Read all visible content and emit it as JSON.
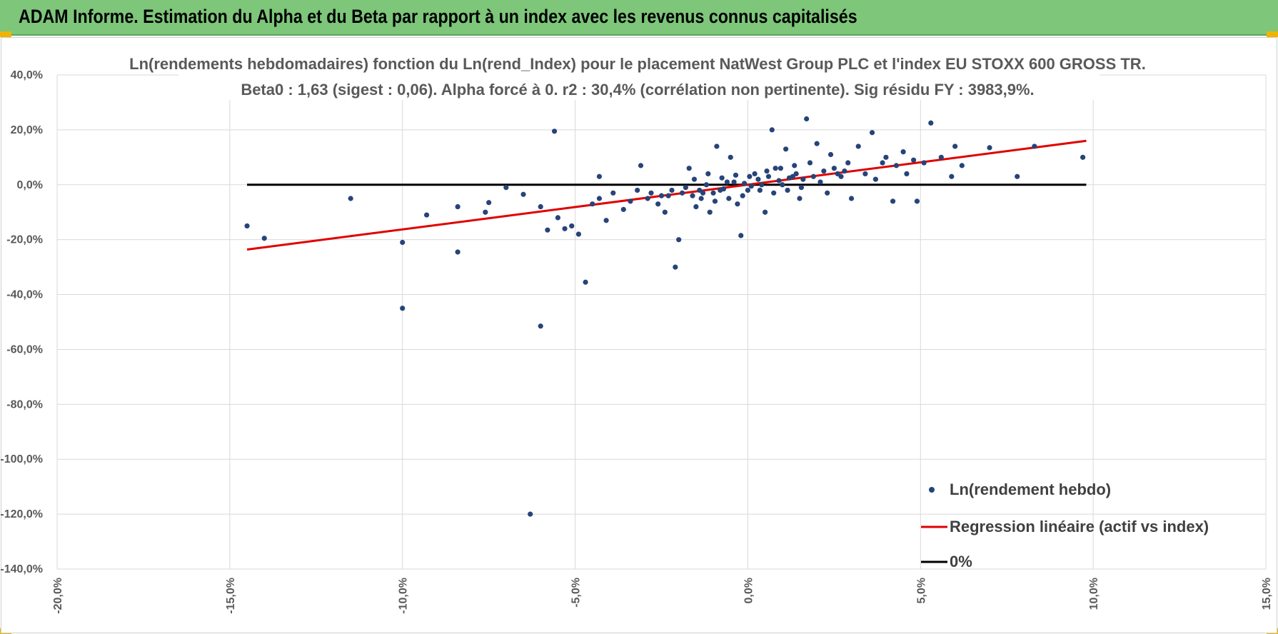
{
  "banner": {
    "title": "ADAM Informe. Estimation du Alpha et du Beta par rapport à un index avec les revenus connus capitalisés"
  },
  "colors": {
    "banner_bg": "#7dc67a",
    "points": "#264478",
    "regression": "#e00000",
    "zero_line": "#000000",
    "grid": "#d9d9d9"
  },
  "chart_data": {
    "type": "scatter",
    "title_line1": "Ln(rendements hebdomadaires) fonction du Ln(rend_Index) pour le placement NatWest Group PLC et l'index EU STOXX 600 GROSS TR.",
    "title_line2": "Beta0 : 1,63 (sigest : 0,06).  Alpha forcé à 0. r2 : 30,4% (corrélation non pertinente). Sig résidu FY : 3983,9%.",
    "xlim": [
      -20,
      15
    ],
    "ylim": [
      -140,
      40
    ],
    "x_ticks": [
      "-20,0%",
      "-15,0%",
      "-10,0%",
      "-5,0%",
      "0,0%",
      "5,0%",
      "10,0%",
      "15,0%"
    ],
    "x_tick_values": [
      -20,
      -15,
      -10,
      -5,
      0,
      5,
      10,
      15
    ],
    "y_ticks": [
      "40,0%",
      "20,0%",
      "0,0%",
      "-20,0%",
      "-40,0%",
      "-60,0%",
      "-80,0%",
      "-100,0%",
      "-120,0%",
      "-140,0%"
    ],
    "y_tick_values": [
      40,
      20,
      0,
      -20,
      -40,
      -60,
      -80,
      -100,
      -120,
      -140
    ],
    "grid": true,
    "legend_position": "bottom-right",
    "series": [
      {
        "name": "Ln(rendement hebdo)",
        "kind": "points",
        "points": [
          [
            -14.5,
            -15
          ],
          [
            -14.0,
            -19.5
          ],
          [
            -11.5,
            -5
          ],
          [
            -10.0,
            -45
          ],
          [
            -10.0,
            -21
          ],
          [
            -9.3,
            -11
          ],
          [
            -8.4,
            -24.5
          ],
          [
            -8.4,
            -8
          ],
          [
            -7.6,
            -10
          ],
          [
            -7.5,
            -6.5
          ],
          [
            -7.0,
            -1
          ],
          [
            -6.5,
            -3.5
          ],
          [
            -6.3,
            -120
          ],
          [
            -6.0,
            -51.5
          ],
          [
            -6.0,
            -8
          ],
          [
            -5.8,
            -16.5
          ],
          [
            -5.6,
            19.5
          ],
          [
            -5.5,
            -12
          ],
          [
            -5.3,
            -16
          ],
          [
            -5.1,
            -15
          ],
          [
            -4.9,
            -18
          ],
          [
            -4.7,
            -35.5
          ],
          [
            -4.5,
            -7
          ],
          [
            -4.3,
            -5
          ],
          [
            -4.1,
            -13
          ],
          [
            -4.3,
            3
          ],
          [
            -3.9,
            -3
          ],
          [
            -3.6,
            -9
          ],
          [
            -3.4,
            -6
          ],
          [
            -3.2,
            -2
          ],
          [
            -3.1,
            7
          ],
          [
            -2.9,
            -5
          ],
          [
            -2.6,
            -7
          ],
          [
            -2.4,
            -10
          ],
          [
            -2.3,
            -4
          ],
          [
            -2.0,
            -20
          ],
          [
            -2.1,
            -30
          ],
          [
            -1.8,
            -1
          ],
          [
            -1.7,
            6
          ],
          [
            -1.5,
            -8
          ],
          [
            -1.3,
            -3
          ],
          [
            -1.1,
            -10
          ],
          [
            -0.9,
            14
          ],
          [
            -0.8,
            -2
          ],
          [
            -0.6,
            1
          ],
          [
            -0.5,
            10
          ],
          [
            -0.3,
            -7
          ],
          [
            -0.2,
            -18.5
          ],
          [
            0.0,
            -2
          ],
          [
            0.2,
            4
          ],
          [
            0.4,
            0
          ],
          [
            0.5,
            -10
          ],
          [
            0.7,
            20
          ],
          [
            0.8,
            6
          ],
          [
            1.0,
            0
          ],
          [
            1.1,
            13
          ],
          [
            1.3,
            3
          ],
          [
            1.5,
            -5
          ],
          [
            1.7,
            24
          ],
          [
            1.8,
            8
          ],
          [
            2.0,
            15
          ],
          [
            2.1,
            1
          ],
          [
            2.3,
            -3
          ],
          [
            2.4,
            11
          ],
          [
            2.5,
            6
          ],
          [
            2.7,
            3
          ],
          [
            2.9,
            8
          ],
          [
            3.0,
            -5
          ],
          [
            3.2,
            14
          ],
          [
            3.4,
            4
          ],
          [
            3.6,
            19
          ],
          [
            3.7,
            2
          ],
          [
            3.9,
            8
          ],
          [
            4.0,
            10
          ],
          [
            4.2,
            -6
          ],
          [
            4.3,
            7
          ],
          [
            4.5,
            12
          ],
          [
            4.6,
            4
          ],
          [
            4.8,
            9
          ],
          [
            4.9,
            -6
          ],
          [
            5.1,
            8
          ],
          [
            5.3,
            22.5
          ],
          [
            5.6,
            10
          ],
          [
            5.9,
            3
          ],
          [
            6.0,
            14
          ],
          [
            6.2,
            7
          ],
          [
            7.0,
            13.5
          ],
          [
            7.8,
            3
          ],
          [
            8.3,
            14
          ],
          [
            9.7,
            10
          ],
          [
            -0.1,
            0.5
          ],
          [
            0.1,
            -0.5
          ],
          [
            0.3,
            2
          ],
          [
            -0.4,
            1
          ],
          [
            0.6,
            3
          ],
          [
            -0.7,
            -1.5
          ],
          [
            0.9,
            1.5
          ],
          [
            -1.0,
            -3
          ],
          [
            1.2,
            2.5
          ],
          [
            -1.2,
            0
          ],
          [
            1.4,
            4
          ],
          [
            -1.4,
            -2
          ],
          [
            1.6,
            2
          ],
          [
            -1.6,
            -4
          ],
          [
            1.9,
            3
          ],
          [
            -1.9,
            -3
          ],
          [
            2.2,
            5
          ],
          [
            -2.2,
            -2
          ],
          [
            2.6,
            4
          ],
          [
            -2.5,
            -4
          ],
          [
            2.8,
            5
          ],
          [
            -2.8,
            -3
          ],
          [
            0.05,
            3
          ],
          [
            -0.15,
            -4
          ],
          [
            0.35,
            -2
          ],
          [
            -0.35,
            3.5
          ],
          [
            0.55,
            5
          ],
          [
            -0.55,
            -5
          ],
          [
            0.75,
            -3
          ],
          [
            -0.75,
            2.5
          ],
          [
            0.95,
            6
          ],
          [
            -0.95,
            -6
          ],
          [
            1.15,
            -2
          ],
          [
            -1.15,
            4
          ],
          [
            1.35,
            7
          ],
          [
            -1.35,
            -5
          ],
          [
            1.55,
            -1
          ],
          [
            -1.55,
            2
          ]
        ]
      },
      {
        "name": "Regression linéaire (actif vs index)",
        "kind": "line",
        "points": [
          [
            -14.5,
            -23.6
          ],
          [
            9.8,
            16.0
          ]
        ]
      },
      {
        "name": "0%",
        "kind": "line",
        "points": [
          [
            -14.5,
            0
          ],
          [
            9.8,
            0
          ]
        ]
      }
    ]
  }
}
